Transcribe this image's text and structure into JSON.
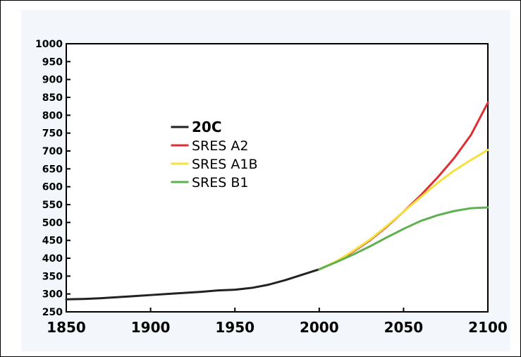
{
  "colors": {
    "panel_background": "#f3f7fb",
    "plot_background": "#ffffff",
    "axis": "#000000",
    "historical": "#222222",
    "a2": "#df2f35",
    "a1b": "#f4e13f",
    "b1": "#5fb14f"
  },
  "chart_data": {
    "type": "line",
    "title": "",
    "xlabel": "",
    "ylabel": "",
    "xlim": [
      1850,
      2100
    ],
    "ylim": [
      250,
      1000
    ],
    "grid": false,
    "legend_position": "upper-left-center",
    "x_ticks": [
      "1850",
      "1900",
      "1950",
      "2000",
      "2050",
      "2100"
    ],
    "y_ticks": [
      "1000",
      "950",
      "900",
      "850",
      "800",
      "750",
      "700",
      "650",
      "600",
      "550",
      "500",
      "450",
      "400",
      "350",
      "300",
      "250"
    ],
    "series": [
      {
        "name": "20C",
        "color_key": "historical",
        "x": [
          1850,
          1860,
          1870,
          1880,
          1890,
          1900,
          1910,
          1920,
          1930,
          1940,
          1950,
          1960,
          1970,
          1980,
          1990,
          2000
        ],
        "y": [
          285,
          286,
          288,
          291,
          294,
          297,
          300,
          303,
          306,
          310,
          312,
          317,
          326,
          339,
          354,
          369
        ]
      },
      {
        "name": "SRES A2",
        "color_key": "a2",
        "x": [
          2000,
          2010,
          2020,
          2030,
          2040,
          2050,
          2060,
          2070,
          2080,
          2090,
          2100
        ],
        "y": [
          369,
          390,
          418,
          450,
          488,
          530,
          575,
          625,
          680,
          745,
          835
        ]
      },
      {
        "name": "SRES A1B",
        "color_key": "a1b",
        "x": [
          2000,
          2010,
          2020,
          2030,
          2040,
          2050,
          2060,
          2070,
          2080,
          2090,
          2100
        ],
        "y": [
          369,
          391,
          420,
          452,
          490,
          530,
          570,
          610,
          645,
          675,
          703
        ]
      },
      {
        "name": "SRES B1",
        "color_key": "b1",
        "x": [
          2000,
          2010,
          2020,
          2030,
          2040,
          2050,
          2060,
          2070,
          2080,
          2090,
          2100
        ],
        "y": [
          369,
          389,
          410,
          433,
          458,
          482,
          504,
          520,
          532,
          540,
          542
        ]
      }
    ]
  }
}
